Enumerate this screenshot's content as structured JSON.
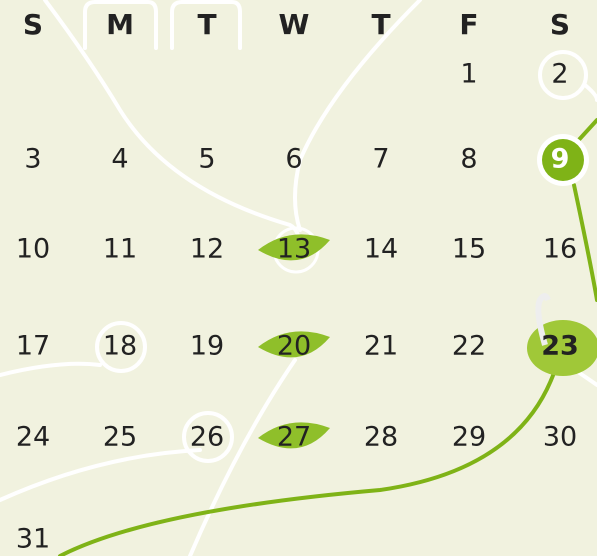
{
  "calendar": {
    "weekdays": [
      "S",
      "M",
      "T",
      "W",
      "T",
      "F",
      "S"
    ],
    "weeks": [
      [
        null,
        null,
        null,
        null,
        null,
        1,
        2
      ],
      [
        3,
        4,
        5,
        6,
        7,
        8,
        9
      ],
      [
        10,
        11,
        12,
        13,
        14,
        15,
        16
      ],
      [
        17,
        18,
        19,
        20,
        21,
        22,
        23
      ],
      [
        24,
        25,
        26,
        27,
        28,
        29,
        30
      ],
      [
        31,
        null,
        null,
        null,
        null,
        null,
        null
      ]
    ]
  }
}
